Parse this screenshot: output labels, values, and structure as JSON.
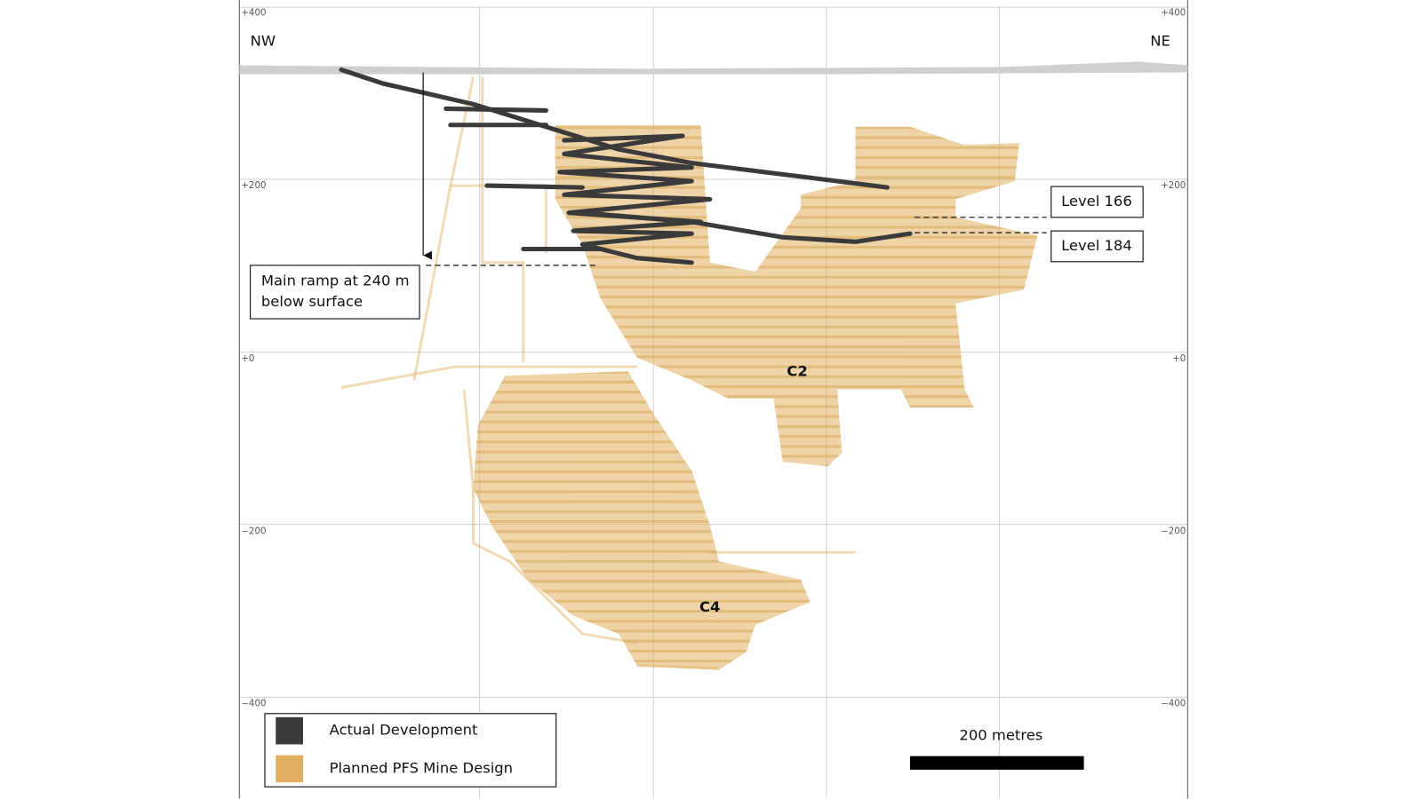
{
  "orientation": {
    "left": "NW",
    "right": "NE"
  },
  "elevations": {
    "left": [
      "+400",
      "+200",
      "+0",
      "−200",
      "−400"
    ],
    "right": [
      "+400",
      "+200",
      "+0",
      "−200",
      "−400"
    ]
  },
  "levels": [
    "Level 166",
    "Level 184"
  ],
  "ramp_note": [
    "Main ramp at 240 m",
    "below surface"
  ],
  "zones": [
    "C2",
    "C4"
  ],
  "legend": [
    {
      "label": "Actual Development",
      "color": "#3a3a3a"
    },
    {
      "label": "Planned PFS Mine Design",
      "color": "#e0b060"
    }
  ],
  "scale_bar": "200 metres"
}
